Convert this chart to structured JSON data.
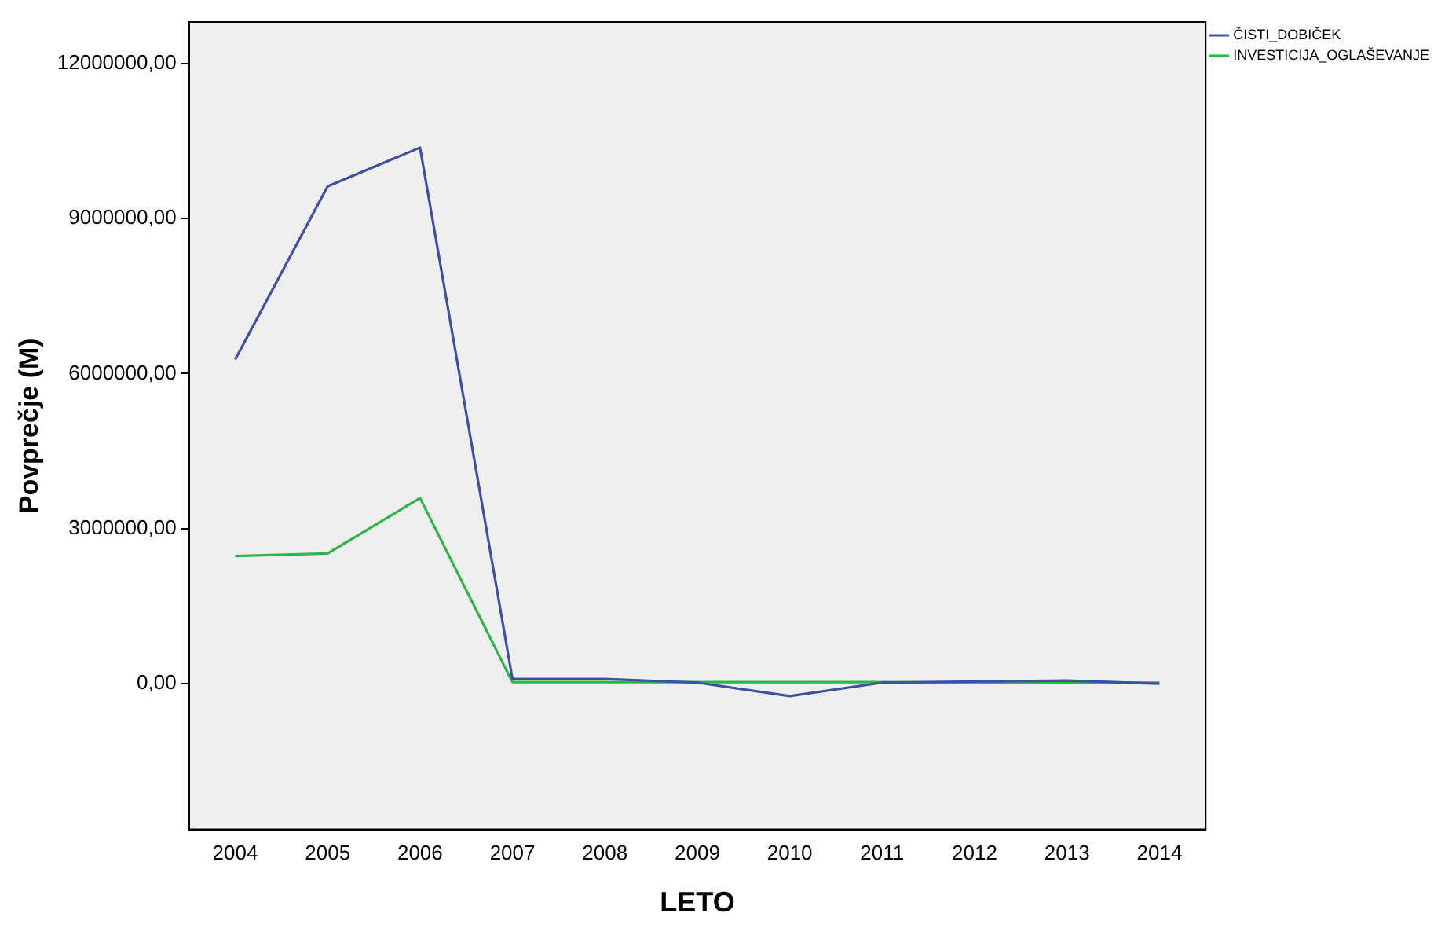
{
  "chart_data": {
    "type": "line",
    "xlabel": "LETO",
    "ylabel": "Povprečje (M)",
    "categories": [
      "2004",
      "2005",
      "2006",
      "2007",
      "2008",
      "2009",
      "2010",
      "2011",
      "2012",
      "2013",
      "2014"
    ],
    "series": [
      {
        "name": "ČISTI_DOBIČEK",
        "color": "#3e4fa8",
        "values": [
          6270000,
          9620000,
          10370000,
          90000,
          90000,
          20000,
          -240000,
          20000,
          40000,
          60000,
          0
        ]
      },
      {
        "name": "INVESTICIJA_OGLAŠEVANJE",
        "color": "#2db548",
        "values": [
          2470000,
          2520000,
          3590000,
          30000,
          30000,
          30000,
          30000,
          30000,
          20000,
          20000,
          20000
        ]
      }
    ],
    "ylim": [
      -2820000,
      12800000
    ],
    "yticks": [
      {
        "value": 0,
        "label": "0,00"
      },
      {
        "value": 3000000,
        "label": "3000000,00"
      },
      {
        "value": 6000000,
        "label": "6000000,00"
      },
      {
        "value": 9000000,
        "label": "9000000,00"
      },
      {
        "value": 12000000,
        "label": "12000000,00"
      }
    ],
    "grid": false,
    "legend": "right",
    "marker": "none",
    "line_style": "solid"
  }
}
